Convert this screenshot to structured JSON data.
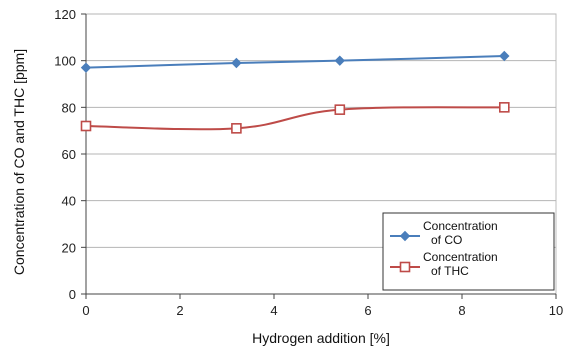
{
  "chart_data": {
    "type": "line",
    "xlabel": "Hydrogen addition [%]",
    "ylabel": "Concentration of CO and THC [ppm]",
    "xlim": [
      0,
      10
    ],
    "ylim": [
      0,
      120
    ],
    "x_ticks": [
      0,
      2,
      4,
      6,
      8,
      10
    ],
    "y_ticks": [
      0,
      20,
      40,
      60,
      80,
      100,
      120
    ],
    "grid": "horizontal",
    "legend_position": "bottom-right",
    "series": [
      {
        "name_lines": [
          "Concentration",
          "of CO"
        ],
        "color": "#4a7ebb",
        "marker": "diamond",
        "x": [
          0,
          3.2,
          5.4,
          8.9
        ],
        "y": [
          97,
          99,
          100,
          102
        ]
      },
      {
        "name_lines": [
          "Concentration",
          "of THC"
        ],
        "color": "#be4b48",
        "marker": "square",
        "x": [
          0,
          3.2,
          5.4,
          8.9
        ],
        "y": [
          72,
          71,
          79,
          80
        ]
      }
    ]
  }
}
